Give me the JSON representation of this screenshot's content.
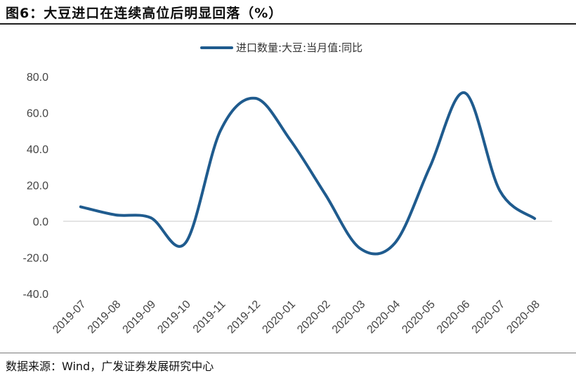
{
  "figure": {
    "title": "图6：大豆进口在连续高位后明显回落（%）",
    "source": "数据来源：Wind，广发证券发展研究中心"
  },
  "chart_data": {
    "type": "line",
    "x": [
      "2019-07",
      "2019-08",
      "2019-09",
      "2019-10",
      "2019-11",
      "2019-12",
      "2020-01",
      "2020-02",
      "2020-03",
      "2020-04",
      "2020-05",
      "2020-06",
      "2020-07",
      "2020-08"
    ],
    "series": [
      {
        "name": "进口数量:大豆:当月值:同比",
        "values": [
          8.0,
          3.5,
          2.0,
          -12.0,
          50.0,
          68.0,
          45.0,
          15.0,
          -15.0,
          -12.0,
          30.0,
          71.0,
          17.0,
          1.5
        ],
        "color": "#1f5b8e"
      }
    ],
    "yticks": [
      "80.0",
      "60.0",
      "40.0",
      "20.0",
      "0.0",
      "-20.0",
      "-40.0"
    ],
    "ylim": [
      -40,
      80
    ],
    "grid": false,
    "legend": "top-center",
    "smooth": true
  }
}
